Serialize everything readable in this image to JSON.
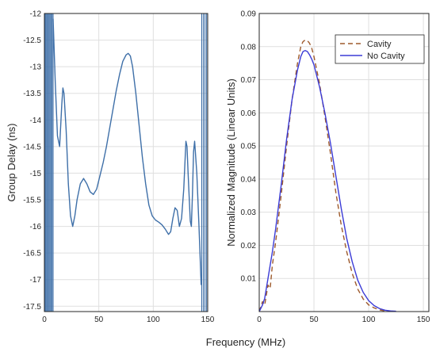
{
  "figure": {
    "xlabel": "Frequency (MHz)"
  },
  "chart_data": [
    {
      "type": "line",
      "title": "",
      "xlabel": "",
      "ylabel": "Group Delay (ns)",
      "xlim": [
        0,
        150
      ],
      "ylim": [
        -17.6,
        -12
      ],
      "xticks": [
        "0",
        "50",
        "100",
        "150"
      ],
      "yticks": [
        "-12",
        "-12.5",
        "-13",
        "-13.5",
        "-14",
        "-14.5",
        "-15",
        "-15.5",
        "-16",
        "-16.5",
        "-17",
        "-17.5"
      ],
      "grid": true,
      "series": [
        {
          "color": "#3e6fa8",
          "x": [
            8,
            10,
            12,
            14,
            16,
            17,
            18,
            20,
            22,
            24,
            26,
            28,
            30,
            33,
            36,
            39,
            42,
            45,
            48,
            51,
            54,
            57,
            60,
            63,
            66,
            69,
            72,
            75,
            77,
            79,
            81,
            84,
            87,
            90,
            93,
            96,
            99,
            102,
            105,
            108,
            111,
            114,
            116,
            118,
            120,
            122,
            124,
            126,
            128,
            130,
            131,
            132,
            134,
            135,
            136,
            137,
            138,
            140,
            142,
            144
          ],
          "y": [
            -12.1,
            -13.3,
            -14.3,
            -14.5,
            -13.7,
            -13.4,
            -13.5,
            -14.2,
            -15.2,
            -15.8,
            -16.0,
            -15.8,
            -15.5,
            -15.2,
            -15.1,
            -15.2,
            -15.35,
            -15.4,
            -15.3,
            -15.05,
            -14.8,
            -14.5,
            -14.15,
            -13.8,
            -13.45,
            -13.15,
            -12.9,
            -12.78,
            -12.75,
            -12.8,
            -13.0,
            -13.5,
            -14.1,
            -14.7,
            -15.2,
            -15.6,
            -15.8,
            -15.88,
            -15.92,
            -15.97,
            -16.05,
            -16.15,
            -16.1,
            -15.85,
            -15.65,
            -15.7,
            -16.0,
            -15.85,
            -15.3,
            -14.4,
            -14.5,
            -15.0,
            -15.9,
            -16.0,
            -15.4,
            -14.6,
            -14.4,
            -15.0,
            -16.0,
            -17.1
          ]
        }
      ]
    },
    {
      "type": "line",
      "title": "",
      "xlabel": "",
      "ylabel": "Normalized Magnitude (Linear Units)",
      "xlim": [
        0,
        155
      ],
      "ylim": [
        0,
        0.09
      ],
      "xticks": [
        "0",
        "50",
        "100",
        "150"
      ],
      "yticks": [
        "0.01",
        "0.02",
        "0.03",
        "0.04",
        "0.05",
        "0.06",
        "0.07",
        "0.08",
        "0.09"
      ],
      "grid": true,
      "legend": {
        "placement": "top-right",
        "entries": [
          "Cavity",
          "No Cavity"
        ]
      },
      "series": [
        {
          "name": "Cavity",
          "color": "#9e5a2c",
          "dash": true,
          "x": [
            0,
            3,
            5,
            8,
            10,
            12,
            15,
            20,
            25,
            30,
            35,
            38,
            40,
            42,
            44,
            46,
            48,
            50,
            55,
            60,
            65,
            70,
            75,
            80,
            85,
            90,
            95,
            100,
            105,
            110,
            115,
            120,
            125
          ],
          "y": [
            0,
            0.003,
            0.002,
            0.008,
            0.007,
            0.014,
            0.021,
            0.035,
            0.05,
            0.064,
            0.075,
            0.08,
            0.0815,
            0.082,
            0.0818,
            0.081,
            0.0795,
            0.077,
            0.069,
            0.059,
            0.048,
            0.036,
            0.026,
            0.018,
            0.0115,
            0.0068,
            0.0038,
            0.002,
            0.0011,
            0.0005,
            0.0002,
            0.0001,
            0.0
          ]
        },
        {
          "name": "No Cavity",
          "color": "#3b3bd6",
          "dash": false,
          "x": [
            0,
            3,
            5,
            8,
            10,
            12,
            15,
            20,
            25,
            30,
            35,
            38,
            40,
            42,
            44,
            46,
            48,
            50,
            55,
            60,
            65,
            70,
            75,
            80,
            85,
            90,
            95,
            100,
            105,
            110,
            115,
            120,
            125
          ],
          "y": [
            0,
            0.002,
            0.004,
            0.01,
            0.014,
            0.018,
            0.025,
            0.038,
            0.052,
            0.064,
            0.073,
            0.077,
            0.0785,
            0.0788,
            0.0785,
            0.0775,
            0.0762,
            0.0745,
            0.068,
            0.06,
            0.051,
            0.041,
            0.031,
            0.022,
            0.015,
            0.0095,
            0.0058,
            0.0033,
            0.0018,
            0.0009,
            0.0004,
            0.0002,
            0.0001
          ]
        }
      ]
    }
  ]
}
